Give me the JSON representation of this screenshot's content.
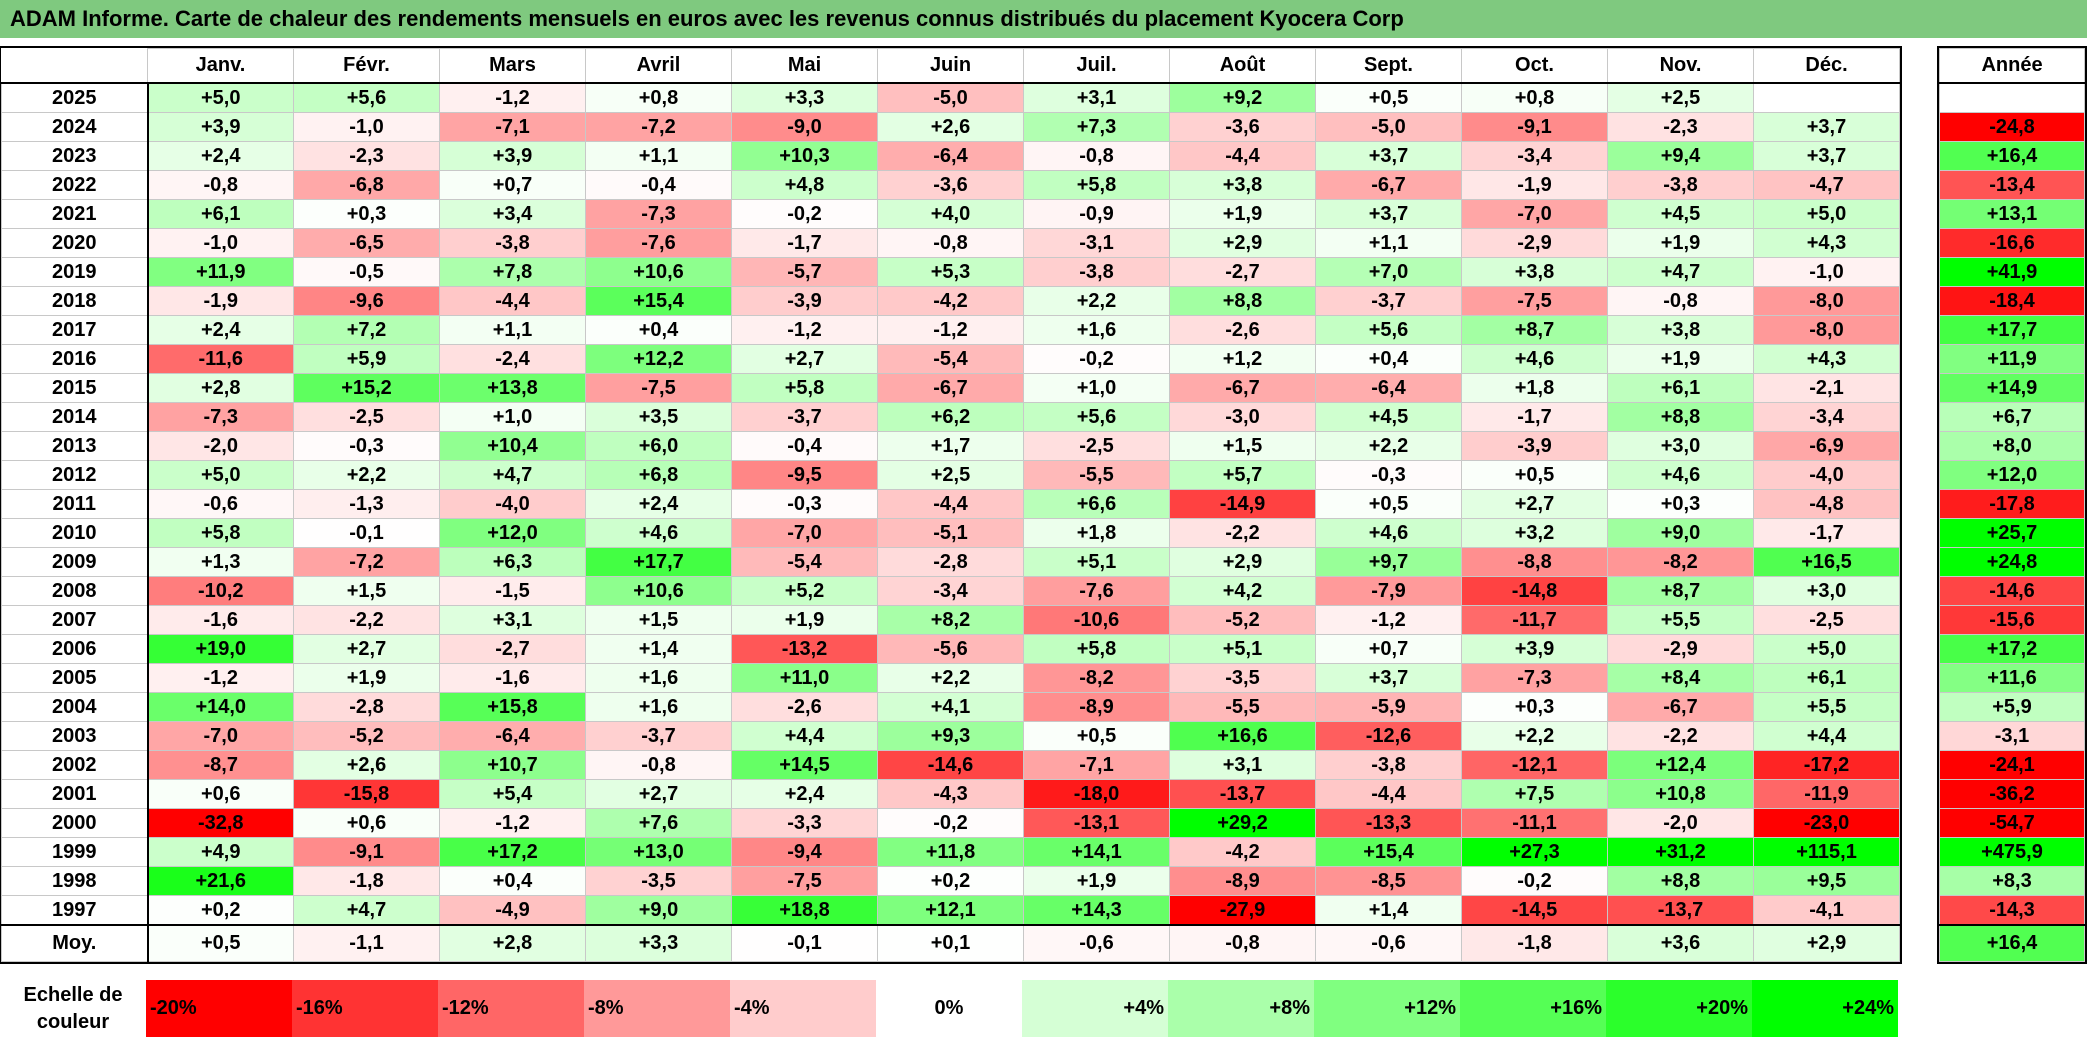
{
  "title": "ADAM Informe. Carte de chaleur des rendements mensuels en euros avec les revenus connus distribués du placement Kyocera Corp",
  "chart_data": {
    "type": "heatmap",
    "columns": [
      "Janv.",
      "Févr.",
      "Mars",
      "Avril",
      "Mai",
      "Juin",
      "Juil.",
      "Août",
      "Sept.",
      "Oct.",
      "Nov.",
      "Déc."
    ],
    "annual_header": "Année",
    "rows": [
      {
        "year": "2025",
        "values": [
          "+5,0",
          "+5,6",
          "-1,2",
          "+0,8",
          "+3,3",
          "-5,0",
          "+3,1",
          "+9,2",
          "+0,5",
          "+0,8",
          "+2,5",
          ""
        ],
        "annual": ""
      },
      {
        "year": "2024",
        "values": [
          "+3,9",
          "-1,0",
          "-7,1",
          "-7,2",
          "-9,0",
          "+2,6",
          "+7,3",
          "-3,6",
          "-5,0",
          "-9,1",
          "-2,3",
          "+3,7"
        ],
        "annual": "-24,8"
      },
      {
        "year": "2023",
        "values": [
          "+2,4",
          "-2,3",
          "+3,9",
          "+1,1",
          "+10,3",
          "-6,4",
          "-0,8",
          "-4,4",
          "+3,7",
          "-3,4",
          "+9,4",
          "+3,7"
        ],
        "annual": "+16,4"
      },
      {
        "year": "2022",
        "values": [
          "-0,8",
          "-6,8",
          "+0,7",
          "-0,4",
          "+4,8",
          "-3,6",
          "+5,8",
          "+3,8",
          "-6,7",
          "-1,9",
          "-3,8",
          "-4,7"
        ],
        "annual": "-13,4"
      },
      {
        "year": "2021",
        "values": [
          "+6,1",
          "+0,3",
          "+3,4",
          "-7,3",
          "-0,2",
          "+4,0",
          "-0,9",
          "+1,9",
          "+3,7",
          "-7,0",
          "+4,5",
          "+5,0"
        ],
        "annual": "+13,1"
      },
      {
        "year": "2020",
        "values": [
          "-1,0",
          "-6,5",
          "-3,8",
          "-7,6",
          "-1,7",
          "-0,8",
          "-3,1",
          "+2,9",
          "+1,1",
          "-2,9",
          "+1,9",
          "+4,3"
        ],
        "annual": "-16,6"
      },
      {
        "year": "2019",
        "values": [
          "+11,9",
          "-0,5",
          "+7,8",
          "+10,6",
          "-5,7",
          "+5,3",
          "-3,8",
          "-2,7",
          "+7,0",
          "+3,8",
          "+4,7",
          "-1,0"
        ],
        "annual": "+41,9"
      },
      {
        "year": "2018",
        "values": [
          "-1,9",
          "-9,6",
          "-4,4",
          "+15,4",
          "-3,9",
          "-4,2",
          "+2,2",
          "+8,8",
          "-3,7",
          "-7,5",
          "-0,8",
          "-8,0"
        ],
        "annual": "-18,4"
      },
      {
        "year": "2017",
        "values": [
          "+2,4",
          "+7,2",
          "+1,1",
          "+0,4",
          "-1,2",
          "-1,2",
          "+1,6",
          "-2,6",
          "+5,6",
          "+8,7",
          "+3,8",
          "-8,0"
        ],
        "annual": "+17,7"
      },
      {
        "year": "2016",
        "values": [
          "-11,6",
          "+5,9",
          "-2,4",
          "+12,2",
          "+2,7",
          "-5,4",
          "-0,2",
          "+1,2",
          "+0,4",
          "+4,6",
          "+1,9",
          "+4,3"
        ],
        "annual": "+11,9"
      },
      {
        "year": "2015",
        "values": [
          "+2,8",
          "+15,2",
          "+13,8",
          "-7,5",
          "+5,8",
          "-6,7",
          "+1,0",
          "-6,7",
          "-6,4",
          "+1,8",
          "+6,1",
          "-2,1"
        ],
        "annual": "+14,9"
      },
      {
        "year": "2014",
        "values": [
          "-7,3",
          "-2,5",
          "+1,0",
          "+3,5",
          "-3,7",
          "+6,2",
          "+5,6",
          "-3,0",
          "+4,5",
          "-1,7",
          "+8,8",
          "-3,4"
        ],
        "annual": "+6,7"
      },
      {
        "year": "2013",
        "values": [
          "-2,0",
          "-0,3",
          "+10,4",
          "+6,0",
          "-0,4",
          "+1,7",
          "-2,5",
          "+1,5",
          "+2,2",
          "-3,9",
          "+3,0",
          "-6,9"
        ],
        "annual": "+8,0"
      },
      {
        "year": "2012",
        "values": [
          "+5,0",
          "+2,2",
          "+4,7",
          "+6,8",
          "-9,5",
          "+2,5",
          "-5,5",
          "+5,7",
          "-0,3",
          "+0,5",
          "+4,6",
          "-4,0"
        ],
        "annual": "+12,0"
      },
      {
        "year": "2011",
        "values": [
          "-0,6",
          "-1,3",
          "-4,0",
          "+2,4",
          "-0,3",
          "-4,4",
          "+6,6",
          "-14,9",
          "+0,5",
          "+2,7",
          "+0,3",
          "-4,8"
        ],
        "annual": "-17,8"
      },
      {
        "year": "2010",
        "values": [
          "+5,8",
          "-0,1",
          "+12,0",
          "+4,6",
          "-7,0",
          "-5,1",
          "+1,8",
          "-2,2",
          "+4,6",
          "+3,2",
          "+9,0",
          "-1,7"
        ],
        "annual": "+25,7"
      },
      {
        "year": "2009",
        "values": [
          "+1,3",
          "-7,2",
          "+6,3",
          "+17,7",
          "-5,4",
          "-2,8",
          "+5,1",
          "+2,9",
          "+9,7",
          "-8,8",
          "-8,2",
          "+16,5"
        ],
        "annual": "+24,8"
      },
      {
        "year": "2008",
        "values": [
          "-10,2",
          "+1,5",
          "-1,5",
          "+10,6",
          "+5,2",
          "-3,4",
          "-7,6",
          "+4,2",
          "-7,9",
          "-14,8",
          "+8,7",
          "+3,0"
        ],
        "annual": "-14,6"
      },
      {
        "year": "2007",
        "values": [
          "-1,6",
          "-2,2",
          "+3,1",
          "+1,5",
          "+1,9",
          "+8,2",
          "-10,6",
          "-5,2",
          "-1,2",
          "-11,7",
          "+5,5",
          "-2,5"
        ],
        "annual": "-15,6"
      },
      {
        "year": "2006",
        "values": [
          "+19,0",
          "+2,7",
          "-2,7",
          "+1,4",
          "-13,2",
          "-5,6",
          "+5,8",
          "+5,1",
          "+0,7",
          "+3,9",
          "-2,9",
          "+5,0"
        ],
        "annual": "+17,2"
      },
      {
        "year": "2005",
        "values": [
          "-1,2",
          "+1,9",
          "-1,6",
          "+1,6",
          "+11,0",
          "+2,2",
          "-8,2",
          "-3,5",
          "+3,7",
          "-7,3",
          "+8,4",
          "+6,1"
        ],
        "annual": "+11,6"
      },
      {
        "year": "2004",
        "values": [
          "+14,0",
          "-2,8",
          "+15,8",
          "+1,6",
          "-2,6",
          "+4,1",
          "-8,9",
          "-5,5",
          "-5,9",
          "+0,3",
          "-6,7",
          "+5,5"
        ],
        "annual": "+5,9"
      },
      {
        "year": "2003",
        "values": [
          "-7,0",
          "-5,2",
          "-6,4",
          "-3,7",
          "+4,4",
          "+9,3",
          "+0,5",
          "+16,6",
          "-12,6",
          "+2,2",
          "-2,2",
          "+4,4"
        ],
        "annual": "-3,1"
      },
      {
        "year": "2002",
        "values": [
          "-8,7",
          "+2,6",
          "+10,7",
          "-0,8",
          "+14,5",
          "-14,6",
          "-7,1",
          "+3,1",
          "-3,8",
          "-12,1",
          "+12,4",
          "-17,2"
        ],
        "annual": "-24,1"
      },
      {
        "year": "2001",
        "values": [
          "+0,6",
          "-15,8",
          "+5,4",
          "+2,7",
          "+2,4",
          "-4,3",
          "-18,0",
          "-13,7",
          "-4,4",
          "+7,5",
          "+10,8",
          "-11,9"
        ],
        "annual": "-36,2"
      },
      {
        "year": "2000",
        "values": [
          "-32,8",
          "+0,6",
          "-1,2",
          "+7,6",
          "-3,3",
          "-0,2",
          "-13,1",
          "+29,2",
          "-13,3",
          "-11,1",
          "-2,0",
          "-23,0"
        ],
        "annual": "-54,7"
      },
      {
        "year": "1999",
        "values": [
          "+4,9",
          "-9,1",
          "+17,2",
          "+13,0",
          "-9,4",
          "+11,8",
          "+14,1",
          "-4,2",
          "+15,4",
          "+27,3",
          "+31,2",
          "+115,1"
        ],
        "annual": "+475,9"
      },
      {
        "year": "1998",
        "values": [
          "+21,6",
          "-1,8",
          "+0,4",
          "-3,5",
          "-7,5",
          "+0,2",
          "+1,9",
          "-8,9",
          "-8,5",
          "-0,2",
          "+8,8",
          "+9,5"
        ],
        "annual": "+8,3"
      },
      {
        "year": "1997",
        "values": [
          "+0,2",
          "+4,7",
          "-4,9",
          "+9,0",
          "+18,8",
          "+12,1",
          "+14,3",
          "-27,9",
          "+1,4",
          "-14,5",
          "-13,7",
          "-4,1"
        ],
        "annual": "-14,3"
      }
    ],
    "average": {
      "label": "Moy.",
      "values": [
        "+0,5",
        "-1,1",
        "+2,8",
        "+3,3",
        "-0,1",
        "+0,1",
        "-0,6",
        "-0,8",
        "-0,6",
        "-1,8",
        "+3,6",
        "+2,9"
      ],
      "annual": "+16,4"
    },
    "scale": {
      "label": "Echelle de couleur",
      "stops": [
        "-20%",
        "-16%",
        "-12%",
        "-8%",
        "-4%",
        "0%",
        "+4%",
        "+8%",
        "+12%",
        "+16%",
        "+20%",
        "+24%"
      ],
      "stop_values": [
        -20,
        -16,
        -12,
        -8,
        -4,
        0,
        4,
        8,
        12,
        16,
        20,
        24
      ]
    },
    "colors": {
      "negative": "#ff0000",
      "neutral": "#ffffff",
      "positive": "#00ff00"
    }
  }
}
